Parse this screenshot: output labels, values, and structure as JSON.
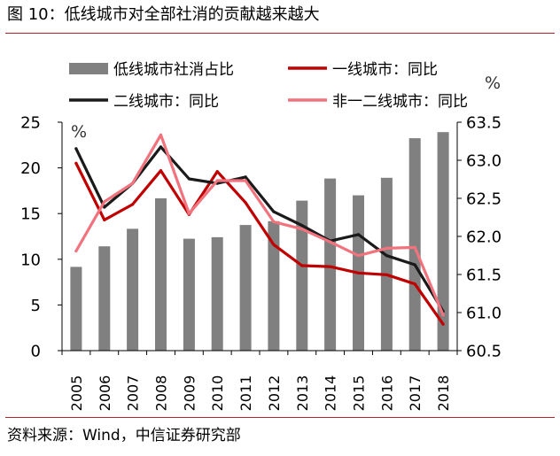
{
  "title": "图 10：低线城市对全部社消的贡献越来越大",
  "source": "资料来源：Wind，中信证券研究部",
  "colors": {
    "bar": "#808080",
    "line_tier1": "#c00000",
    "line_tier2": "#1a1a1a",
    "line_non12": "#f0737d",
    "rule": "#b3262e"
  },
  "chart_data": {
    "type": "bar",
    "categories": [
      "2005",
      "2006",
      "2007",
      "2008",
      "2009",
      "2010",
      "2011",
      "2012",
      "2013",
      "2014",
      "2015",
      "2016",
      "2017",
      "2018"
    ],
    "left_axis": {
      "ylim": [
        0,
        25
      ],
      "ticks": [
        "0",
        "5",
        "10",
        "15",
        "20",
        "25"
      ],
      "unit": "%"
    },
    "right_axis": {
      "ylim": [
        60.5,
        63.5
      ],
      "ticks": [
        "60.5",
        "61.0",
        "61.5",
        "62.0",
        "62.5",
        "63.0",
        "63.5"
      ],
      "unit": "%"
    },
    "bar_series": {
      "name": "低线城市社消占比",
      "axis": "right",
      "values": [
        61.6,
        61.87,
        62.1,
        62.5,
        61.97,
        61.99,
        62.15,
        62.2,
        62.47,
        62.76,
        62.54,
        62.77,
        63.29,
        63.37
      ]
    },
    "line_series": [
      {
        "name": "一线城市：同比",
        "axis": "left",
        "color": "#c00000",
        "values": [
          20.5,
          14.3,
          16.0,
          19.7,
          14.9,
          19.6,
          16.2,
          11.6,
          9.3,
          9.2,
          8.5,
          8.3,
          7.3,
          2.9
        ]
      },
      {
        "name": "二线城市：同比",
        "axis": "left",
        "color": "#1a1a1a",
        "values": [
          22.1,
          15.7,
          18.3,
          22.3,
          18.8,
          18.3,
          19.0,
          15.2,
          13.7,
          12.0,
          12.7,
          10.4,
          9.4,
          4.3
        ]
      },
      {
        "name": "非一二线城市：同比",
        "axis": "left",
        "color": "#f0737d",
        "values": [
          10.9,
          16.3,
          18.3,
          23.6,
          15.0,
          18.6,
          18.6,
          14.1,
          13.3,
          11.9,
          10.4,
          11.2,
          11.3,
          3.9
        ]
      }
    ],
    "legend": [
      {
        "label": "低线城市社消占比",
        "kind": "bar"
      },
      {
        "label": "一线城市：同比",
        "kind": "line"
      },
      {
        "label": "二线城市：同比",
        "kind": "line"
      },
      {
        "label": "非一二线城市：同比",
        "kind": "line"
      }
    ],
    "legend_position": "top",
    "grid": false
  }
}
